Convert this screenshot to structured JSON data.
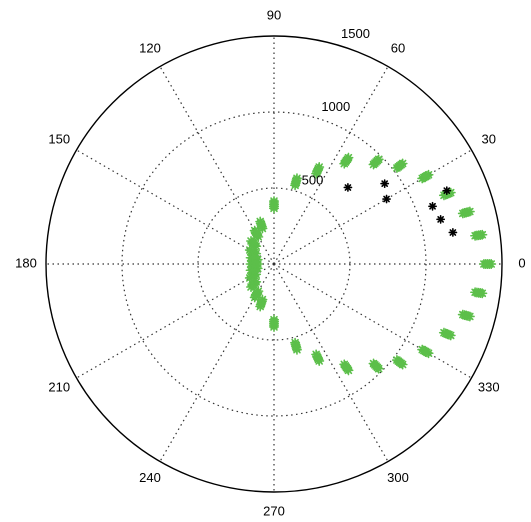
{
  "chart_data": {
    "type": "scatter",
    "coordinate_system": "polar",
    "angle_unit": "degrees",
    "r_max": 1500,
    "angle_ticks": [
      "0",
      "30",
      "60",
      "90",
      "120",
      "150",
      "180",
      "210",
      "240",
      "270",
      "300",
      "330"
    ],
    "radial_ticks": [
      "500",
      "1000",
      "1500"
    ],
    "radial_tick_values": [
      500,
      1000,
      1500
    ],
    "radial_label_angle": 75,
    "grid": true,
    "colors": {
      "green_series": "#5cbf4a",
      "black_series": "#000000",
      "axis": "#000000",
      "grid": "#333333"
    },
    "series": [
      {
        "color": "#5cbf4a",
        "marker": "asterisk",
        "points": [
          {
            "theta": 0,
            "r": 1405
          },
          {
            "theta": -8,
            "r": 1360
          },
          {
            "theta": 8,
            "r": 1360
          },
          {
            "theta": -15,
            "r": 1310
          },
          {
            "theta": 15,
            "r": 1310
          },
          {
            "theta": -22,
            "r": 1230
          },
          {
            "theta": 22,
            "r": 1230
          },
          {
            "theta": -30,
            "r": 1150
          },
          {
            "theta": 30,
            "r": 1150
          },
          {
            "theta": -38,
            "r": 1050
          },
          {
            "theta": 38,
            "r": 1050
          },
          {
            "theta": -45,
            "r": 950
          },
          {
            "theta": 45,
            "r": 950
          },
          {
            "theta": -55,
            "r": 830
          },
          {
            "theta": 55,
            "r": 830
          },
          {
            "theta": -65,
            "r": 680
          },
          {
            "theta": 65,
            "r": 680
          },
          {
            "theta": -75,
            "r": 560
          },
          {
            "theta": 75,
            "r": 560
          },
          {
            "theta": -90,
            "r": 390
          },
          {
            "theta": 90,
            "r": 390
          },
          {
            "theta": -108,
            "r": 270
          },
          {
            "theta": 108,
            "r": 270
          },
          {
            "theta": -120,
            "r": 230
          },
          {
            "theta": 120,
            "r": 230
          },
          {
            "theta": -135,
            "r": 190
          },
          {
            "theta": 135,
            "r": 190
          },
          {
            "theta": -150,
            "r": 160
          },
          {
            "theta": 150,
            "r": 160
          },
          {
            "theta": -165,
            "r": 135
          },
          {
            "theta": 165,
            "r": 135
          },
          {
            "theta": 180,
            "r": 130
          }
        ]
      },
      {
        "color": "#000000",
        "marker": "asterisk",
        "points": [
          {
            "theta": 10,
            "r": 1195
          },
          {
            "theta": 15,
            "r": 1135
          },
          {
            "theta": 20,
            "r": 1110
          },
          {
            "theta": 23,
            "r": 1235
          },
          {
            "theta": 30,
            "r": 855
          },
          {
            "theta": 36,
            "r": 900
          },
          {
            "theta": 46,
            "r": 700
          }
        ]
      }
    ]
  }
}
